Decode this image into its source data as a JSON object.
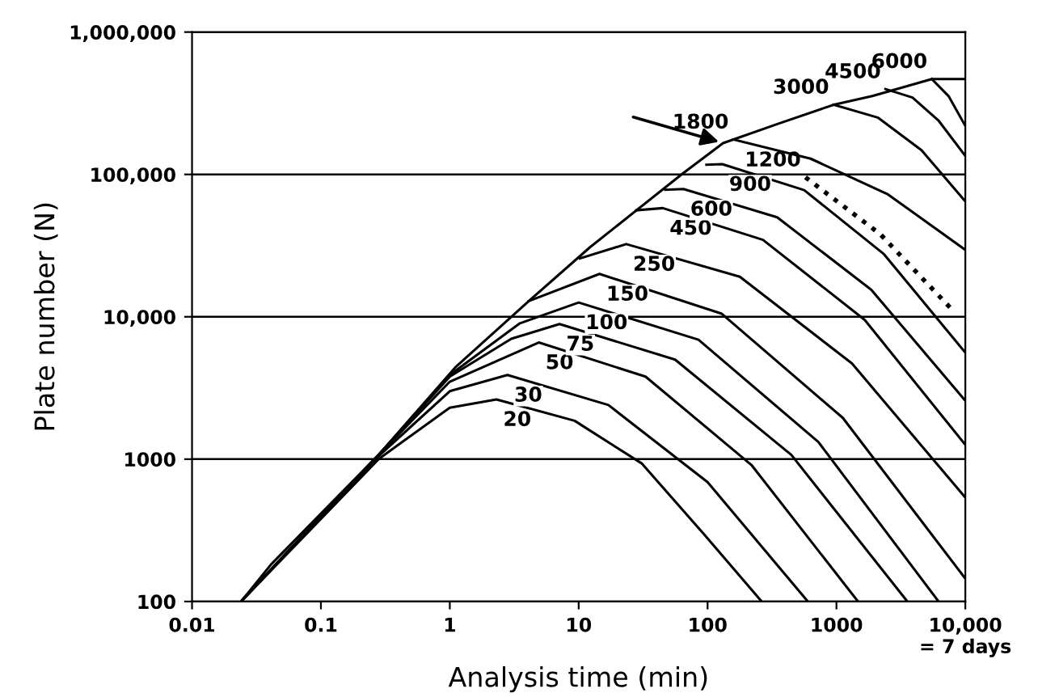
{
  "chart_data": {
    "type": "line",
    "xlabel": "Analysis time (min)",
    "ylabel": "Plate number (N)",
    "log": "xy",
    "grid": "y",
    "xlim": [
      0.01,
      10000
    ],
    "ylim": [
      100,
      1000000
    ],
    "xticks": [
      0.01,
      0.1,
      1,
      10,
      100,
      1000,
      {
        "value": 10000,
        "label": "10,000\n= 7 days"
      }
    ],
    "yticks": [
      100,
      1000,
      {
        "value": 10000,
        "label": "10,000"
      },
      {
        "value": 100000,
        "label": "100,000"
      },
      {
        "value": 1000000,
        "label": "1,000,000"
      }
    ],
    "series": [
      {
        "color": "#000000",
        "x": [
          0.024,
          0.041,
          0.28,
          1.12,
          4.1,
          12.3,
          64.6,
          132,
          363,
          955,
          1900,
          5500,
          10000
        ],
        "values": [
          100,
          182,
          1070,
          4470,
          12900,
          30900,
          102000,
          166000,
          229000,
          309000,
          355000,
          468000,
          468000
        ]
      },
      {
        "name": "20",
        "color": "#000000",
        "x": [
          0.024,
          0.28,
          1.0,
          2.3,
          9.3,
          31,
          93,
          263
        ],
        "values": [
          100,
          1000,
          2300,
          2630,
          1860,
          930,
          300,
          100
        ]
      },
      {
        "name": "30",
        "color": "#000000",
        "x": [
          0.024,
          0.28,
          1.0,
          2.8,
          17,
          100,
          600
        ],
        "values": [
          100,
          1050,
          3000,
          3900,
          2400,
          690,
          100
        ]
      },
      {
        "name": "50",
        "color": "#000000",
        "x": [
          0.024,
          0.28,
          1.0,
          4.9,
          33,
          219,
          1470
        ],
        "values": [
          100,
          1070,
          3500,
          6600,
          3800,
          910,
          100
        ]
      },
      {
        "name": "75",
        "color": "#000000",
        "x": [
          0.024,
          0.28,
          1.0,
          3.0,
          7.1,
          56,
          447,
          3550
        ],
        "values": [
          100,
          1070,
          3800,
          7000,
          8900,
          5000,
          1070,
          100
        ]
      },
      {
        "name": "100",
        "color": "#000000",
        "x": [
          0.024,
          0.28,
          1.0,
          3.5,
          10,
          85,
          724,
          6200
        ],
        "values": [
          100,
          1070,
          3900,
          9000,
          12600,
          6900,
          1320,
          100
        ]
      },
      {
        "name": "150",
        "color": "#000000",
        "x": [
          4.1,
          14.5,
          129,
          1120,
          10000
        ],
        "values": [
          12900,
          20000,
          10500,
          1950,
          145
        ]
      },
      {
        "name": "250",
        "color": "#000000",
        "x": [
          10.2,
          23.4,
          178,
          1320,
          10000
        ],
        "values": [
          25700,
          32400,
          19100,
          4700,
          537
        ]
      },
      {
        "name": "450",
        "color": "#000000",
        "x": [
          28,
          45,
          269,
          1660,
          10000
        ],
        "values": [
          56000,
          58000,
          34700,
          9500,
          1260
        ]
      },
      {
        "name": "600",
        "color": "#000000",
        "x": [
          47,
          65,
          347,
          1860,
          10000
        ],
        "values": [
          78000,
          79000,
          50000,
          15500,
          2570
        ]
      },
      {
        "name": "900",
        "color": "#000000",
        "x": [
          98,
          130,
          562,
          2340,
          10000
        ],
        "values": [
          117000,
          118000,
          77600,
          27500,
          5600
        ]
      },
      {
        "name": "1200",
        "color": "#000000",
        "line_style": "dotted",
        "x": [
          575,
          2190,
          8300
        ],
        "values": [
          95500,
          38000,
          10700
        ]
      },
      {
        "name": "1800",
        "color": "#000000",
        "x": [
          158,
          631,
          2510,
          10000
        ],
        "values": [
          176000,
          129000,
          72400,
          29500
        ]
      },
      {
        "name": "3000",
        "color": "#000000",
        "x": [
          950,
          2090,
          4570,
          10000
        ],
        "values": [
          309000,
          251000,
          148000,
          64600
        ]
      },
      {
        "name": "4500",
        "color": "#000000",
        "x": [
          2400,
          3890,
          6170,
          10000
        ],
        "values": [
          398000,
          347000,
          240000,
          135000
        ]
      },
      {
        "name": "6000",
        "color": "#000000",
        "x": [
          5500,
          7410,
          10000
        ],
        "values": [
          468000,
          355000,
          219000
        ]
      }
    ]
  }
}
